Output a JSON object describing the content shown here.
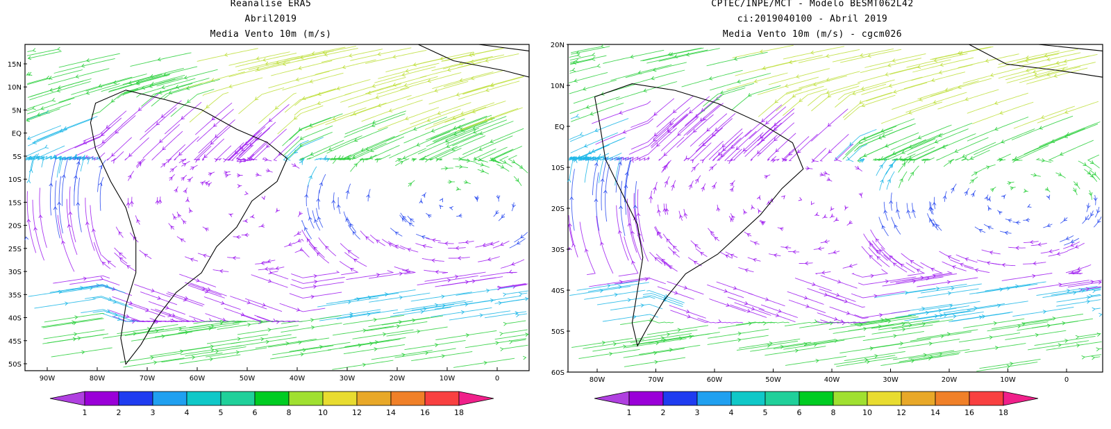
{
  "left_panel": {
    "title_lines": [
      "Reanalise ERA5",
      "Abril2019",
      "Media Vento 10m (m/s)"
    ],
    "lat_labels": [
      "15N",
      "10N",
      "5N",
      "EQ",
      "5S",
      "10S",
      "15S",
      "20S",
      "25S",
      "30S",
      "35S",
      "40S",
      "45S",
      "50S"
    ],
    "lon_labels": [
      "90W",
      "80W",
      "70W",
      "60W",
      "50W",
      "40W",
      "30W",
      "20W",
      "10W",
      "0"
    ]
  },
  "right_panel": {
    "title_lines": [
      "CPTEC/INPE/MCT -  Modelo BESMT062L42",
      "ci:2019040100 - Abril 2019",
      "Media Vento 10m (m/s) - cgcm026"
    ],
    "lat_labels": [
      "20N",
      "10N",
      "EQ",
      "10S",
      "20S",
      "30S",
      "40S",
      "50S",
      "60S"
    ],
    "lon_labels": [
      "80W",
      "70W",
      "60W",
      "50W",
      "40W",
      "30W",
      "20W",
      "10W",
      "0"
    ]
  },
  "colorbar": {
    "labels": [
      "1",
      "2",
      "3",
      "4",
      "5",
      "6",
      "8",
      "10",
      "12",
      "14",
      "16",
      "18"
    ],
    "colors": [
      "#9a00d8",
      "#1f3cf0",
      "#20a0f0",
      "#10c8c8",
      "#20d09a",
      "#00cc22",
      "#a0e030",
      "#e8dc30",
      "#e8a828",
      "#f08028",
      "#f84040"
    ],
    "low_color": "#b040e0",
    "high_color": "#f0208a"
  },
  "palette": {
    "purple": "#a020f0",
    "blue": "#3050f0",
    "cyan": "#20b8e8",
    "teal": "#20d0b0",
    "green": "#30d040",
    "yellowgreen": "#c0e040",
    "coast": "#000000"
  }
}
